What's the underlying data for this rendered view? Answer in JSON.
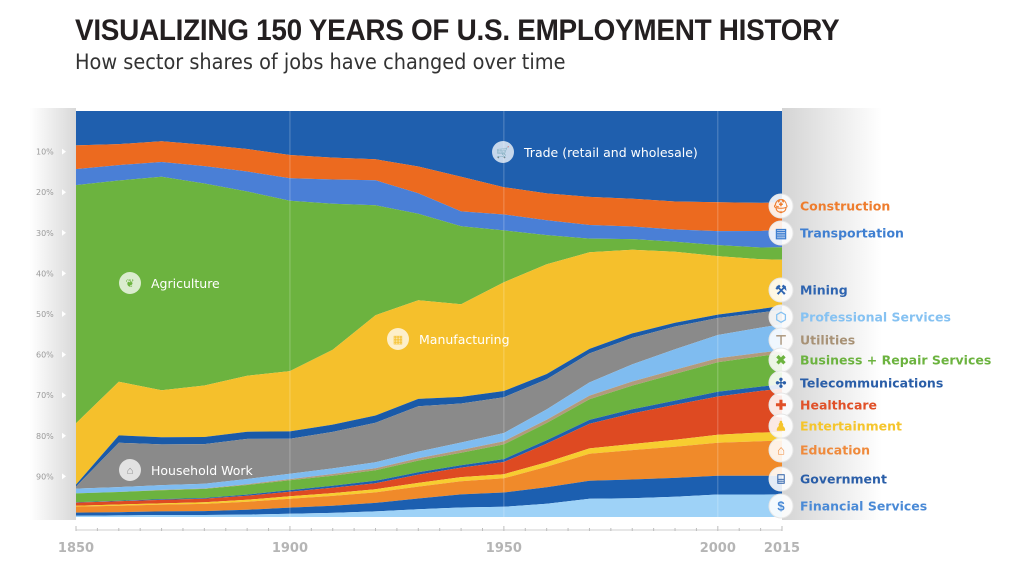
{
  "title": "VISUALIZING 150 YEARS OF U.S. EMPLOYMENT HISTORY",
  "subtitle": "How sector shares of jobs have changed over time",
  "chart_data": {
    "type": "area",
    "stacked": true,
    "normalized": true,
    "title": "VISUALIZING 150 YEARS OF U.S. EMPLOYMENT HISTORY",
    "subtitle": "How sector shares of jobs have changed over time",
    "xlabel": "",
    "ylabel": "",
    "x": [
      1850,
      1860,
      1870,
      1880,
      1890,
      1900,
      1910,
      1920,
      1930,
      1940,
      1950,
      1960,
      1970,
      1980,
      1990,
      2000,
      2010,
      2015
    ],
    "xlim": [
      1850,
      2015
    ],
    "xticks": [
      "1850",
      "1900",
      "1950",
      "2000",
      "2015"
    ],
    "ylim": [
      0,
      100
    ],
    "yticks": [
      "10%",
      "20%",
      "30%",
      "40%",
      "50%",
      "60%",
      "70%",
      "80%",
      "90%"
    ],
    "y_direction": "top-down",
    "series": [
      {
        "name": "Trade (retail and wholesale)",
        "color": "#1f5fae",
        "label_position": "inside",
        "values": [
          8.6,
          8.2,
          7.6,
          8.5,
          9.5,
          10.8,
          11.5,
          12.0,
          13.5,
          16.0,
          18.7,
          20.0,
          20.8,
          21.5,
          22.0,
          21.5,
          21.2,
          21.0
        ]
      },
      {
        "name": "Construction",
        "color": "#ec6a1f",
        "label_position": "right",
        "values": [
          5.9,
          5.2,
          5.2,
          5.4,
          5.6,
          5.7,
          5.4,
          5.2,
          6.5,
          8.4,
          6.7,
          6.5,
          6.8,
          6.8,
          6.8,
          6.8,
          6.5,
          6.3
        ]
      },
      {
        "name": "Transportation",
        "color": "#4a7fd6",
        "label_position": "right",
        "values": [
          4.0,
          3.8,
          3.7,
          4.4,
          5.0,
          5.5,
          6.0,
          6.2,
          5.0,
          3.6,
          3.9,
          3.6,
          3.3,
          3.1,
          3.0,
          3.3,
          3.8,
          4.0
        ]
      },
      {
        "name": "Agriculture",
        "color": "#6cb33f",
        "label_position": "inside",
        "values": [
          59.5,
          49.8,
          53.5,
          51.0,
          46.0,
          41.8,
          36.0,
          27.3,
          21.0,
          19.0,
          12.7,
          7.1,
          3.3,
          2.6,
          2.4,
          2.6,
          2.7,
          2.9
        ]
      },
      {
        "name": "Manufacturing",
        "color": "#f5c02c",
        "label_position": "inside",
        "values": [
          15.3,
          13.3,
          11.8,
          13.0,
          14.0,
          14.8,
          18.5,
          24.9,
          24.0,
          22.5,
          26.7,
          26.6,
          23.4,
          20.5,
          17.3,
          13.8,
          11.5,
          10.6
        ]
      },
      {
        "name": "Mining",
        "color": "#1a5aa8",
        "label_position": "right",
        "values": [
          0.5,
          1.8,
          1.8,
          1.8,
          1.8,
          1.8,
          1.8,
          1.8,
          1.8,
          1.6,
          1.5,
          1.3,
          1.1,
          1.1,
          0.9,
          0.8,
          0.8,
          0.9
        ]
      },
      {
        "name": "Household Work",
        "color": "#8a8a8a",
        "label_position": "inside",
        "values": [
          0.5,
          11.0,
          10.2,
          10.0,
          10.0,
          8.6,
          9.0,
          9.8,
          11.0,
          9.5,
          8.8,
          7.3,
          7.0,
          6.5,
          5.5,
          4.0,
          3.5,
          3.3
        ]
      },
      {
        "name": "Professional Services",
        "color": "#7fbcf0",
        "label_position": "right",
        "values": [
          1.2,
          1.2,
          1.2,
          1.2,
          1.3,
          1.3,
          1.4,
          1.5,
          1.6,
          1.8,
          2.0,
          2.5,
          3.2,
          4.2,
          5.0,
          5.5,
          5.8,
          6.0
        ]
      },
      {
        "name": "Utilities",
        "color": "#b29a7c",
        "label_position": "right",
        "values": [
          0.0,
          0.0,
          0.1,
          0.1,
          0.2,
          0.3,
          0.4,
          0.5,
          0.6,
          0.7,
          0.8,
          0.8,
          0.9,
          1.0,
          1.0,
          0.9,
          0.8,
          0.8
        ]
      },
      {
        "name": "Business + Repair Services",
        "color": "#6cb33f",
        "label_position": "right",
        "values": [
          2.2,
          2.2,
          2.2,
          2.3,
          2.4,
          2.4,
          2.5,
          2.6,
          2.8,
          3.0,
          3.6,
          4.2,
          5.0,
          5.8,
          6.5,
          7.0,
          7.0,
          7.0
        ]
      },
      {
        "name": "Telecommunications",
        "color": "#1f5fae",
        "label_position": "right",
        "values": [
          0.1,
          0.1,
          0.2,
          0.2,
          0.3,
          0.4,
          0.5,
          0.6,
          0.6,
          0.6,
          0.7,
          0.8,
          0.9,
          1.0,
          1.0,
          1.1,
          1.0,
          1.0
        ]
      },
      {
        "name": "Healthcare",
        "color": "#de4a22",
        "label_position": "right",
        "values": [
          0.8,
          0.8,
          0.9,
          0.9,
          1.0,
          1.1,
          1.3,
          1.5,
          2.0,
          2.3,
          3.0,
          4.5,
          6.0,
          7.5,
          8.5,
          9.0,
          9.6,
          10.0
        ]
      },
      {
        "name": "Entertainment",
        "color": "#f7cd30",
        "label_position": "right",
        "values": [
          0.2,
          0.3,
          0.3,
          0.4,
          0.5,
          0.6,
          0.7,
          0.8,
          0.9,
          1.0,
          1.0,
          1.1,
          1.3,
          1.5,
          1.7,
          1.9,
          2.0,
          2.0
        ]
      },
      {
        "name": "Education",
        "color": "#f08a2a",
        "label_position": "right",
        "values": [
          1.5,
          1.6,
          1.7,
          1.8,
          2.0,
          2.2,
          2.4,
          2.6,
          2.9,
          3.2,
          3.5,
          5.0,
          6.5,
          7.2,
          7.6,
          7.8,
          8.0,
          8.0
        ]
      },
      {
        "name": "Government",
        "color": "#1c5fb0",
        "label_position": "right",
        "values": [
          0.8,
          0.8,
          0.9,
          1.0,
          1.2,
          1.5,
          1.8,
          2.1,
          2.6,
          3.2,
          3.5,
          4.0,
          4.4,
          4.6,
          4.6,
          4.4,
          4.3,
          4.3
        ]
      },
      {
        "name": "Financial Services",
        "color": "#9ed2f7",
        "label_position": "right",
        "values": [
          0.3,
          0.4,
          0.5,
          0.5,
          0.6,
          0.8,
          1.0,
          1.4,
          1.9,
          2.3,
          2.5,
          3.2,
          4.4,
          4.6,
          4.9,
          5.3,
          5.2,
          5.2
        ]
      }
    ]
  }
}
